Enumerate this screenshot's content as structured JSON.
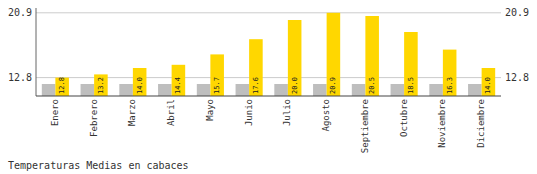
{
  "chart_data": {
    "type": "bar",
    "title": "Temperaturas Medias en cabaces",
    "categories": [
      "Enero",
      "Febrero",
      "Marzo",
      "Abril",
      "Mayo",
      "Junio",
      "Julio",
      "Agosto",
      "Septiembre",
      "Octubre",
      "Noviembre",
      "Diciembre"
    ],
    "series": [
      {
        "color": "#BEBEBE",
        "values": [
          12.0,
          12.0,
          12.0,
          12.0,
          12.0,
          12.0,
          12.0,
          12.0,
          12.0,
          12.0,
          12.0,
          12.0
        ]
      },
      {
        "color": "#FFD700",
        "values": [
          12.8,
          13.2,
          14.0,
          14.4,
          15.7,
          17.6,
          20.0,
          20.9,
          20.5,
          18.5,
          16.3,
          14.0
        ],
        "data_labels": true,
        "value_labels": [
          "12.8",
          "13.2",
          "14.0",
          "14.4",
          "15.7",
          "17.6",
          "20.0",
          "20.9",
          "20.5",
          "18.5",
          "16.3",
          "14.0"
        ]
      }
    ],
    "ylim": [
      10.5,
      21.5
    ],
    "yticks": [
      12.8,
      20.9
    ],
    "y2lim": [
      10.5,
      21.5
    ],
    "y2ticks": [
      12.8,
      20.9
    ],
    "grid": true
  }
}
